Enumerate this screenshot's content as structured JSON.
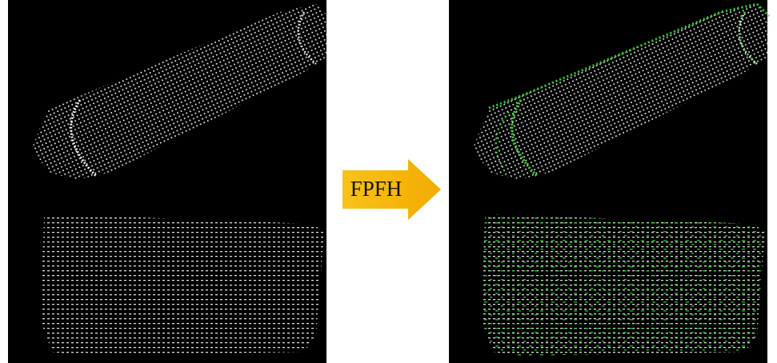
{
  "arrow": {
    "label": "FPFH"
  }
}
